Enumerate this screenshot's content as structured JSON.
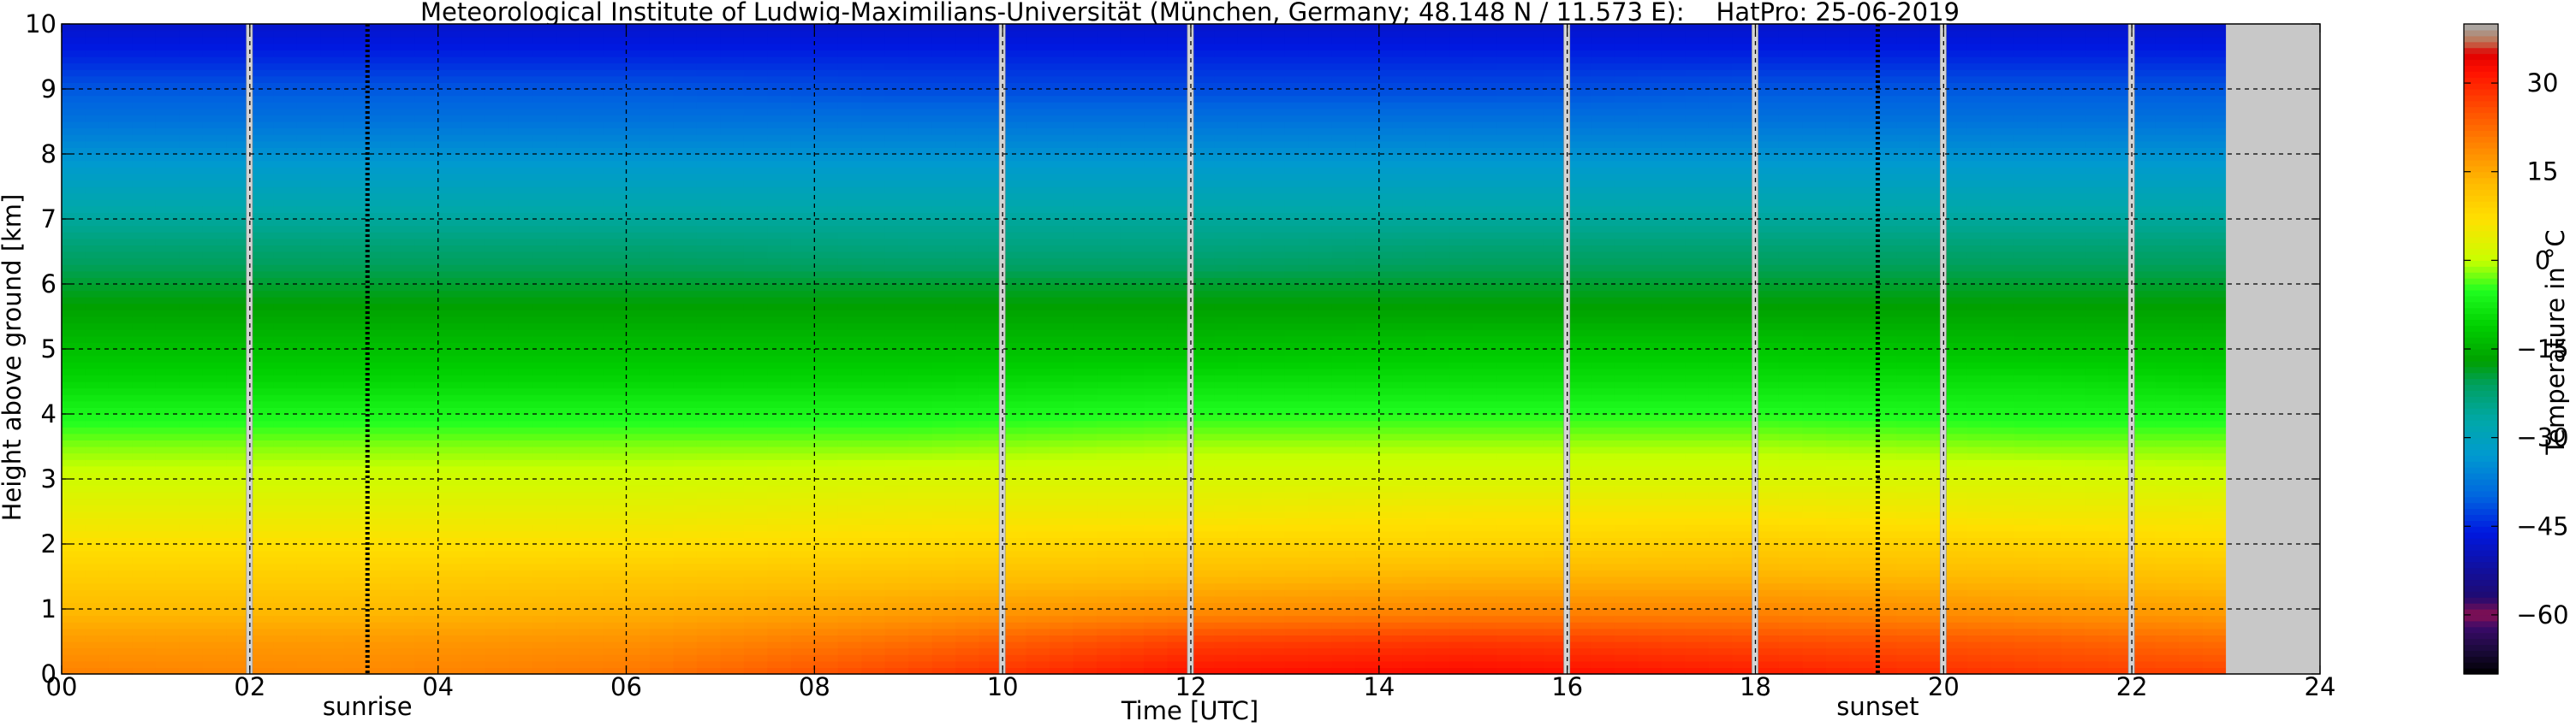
{
  "chart_data": {
    "type": "heatmap",
    "title": "Meteorological Institute of Ludwig-Maximilians-Universität (München, Germany; 48.148 N / 11.573 E):    HatPro: 25-06-2019",
    "xlabel": "Time [UTC]",
    "ylabel": "Height above ground [km]",
    "xlim": [
      0,
      24
    ],
    "ylim": [
      0,
      10
    ],
    "x_tick_labels": [
      "00",
      "02",
      "04",
      "06",
      "08",
      "10",
      "12",
      "14",
      "16",
      "18",
      "20",
      "22",
      "24"
    ],
    "y_tick_labels": [
      "0",
      "1",
      "2",
      "3",
      "4",
      "5",
      "6",
      "7",
      "8",
      "9",
      "10"
    ],
    "grid": true,
    "annotations": [
      {
        "text": "sunrise",
        "x": 3.25
      },
      {
        "text": "sunset",
        "x": 19.3
      }
    ],
    "marker_lines": [
      3.25,
      19.3
    ],
    "data_gaps_utc": [
      2.0,
      10.0,
      12.0,
      16.0,
      18.0,
      20.0,
      22.0
    ],
    "no_data_after_utc": 23.0,
    "colorbar": {
      "label": "Temperature in °C",
      "tick_labels": [
        "30",
        "15",
        "0",
        "−15",
        "−30",
        "−45",
        "−60"
      ],
      "ticks": [
        30,
        15,
        0,
        -15,
        -30,
        -45,
        -60
      ],
      "range": [
        -70,
        40
      ]
    },
    "heights_km": [
      0,
      0.5,
      1.0,
      1.5,
      2.0,
      2.5,
      3.0,
      3.5,
      4.0,
      4.5,
      5.0,
      5.5,
      6.0,
      6.5,
      7.0,
      7.5,
      8.0,
      8.5,
      9.0,
      9.5,
      10.0
    ],
    "series": [
      {
        "time_utc": 0,
        "temperature_c": [
          20,
          17,
          13,
          10,
          7,
          4,
          1,
          -2,
          -6,
          -10,
          -13,
          -16,
          -19,
          -22,
          -26,
          -30,
          -34,
          -38,
          -41,
          -45,
          -48
        ]
      },
      {
        "time_utc": 3,
        "temperature_c": [
          19,
          17,
          13,
          10,
          7,
          4,
          1,
          -2,
          -6,
          -10,
          -13,
          -16,
          -19,
          -22,
          -26,
          -30,
          -34,
          -38,
          -41,
          -45,
          -48
        ]
      },
      {
        "time_utc": 6,
        "temperature_c": [
          21,
          18,
          14,
          11,
          7,
          4,
          1,
          -2,
          -6,
          -10,
          -13,
          -16,
          -19,
          -22,
          -26,
          -30,
          -34,
          -38,
          -41,
          -45,
          -48
        ]
      },
      {
        "time_utc": 9,
        "temperature_c": [
          27,
          22,
          16,
          12,
          8,
          5,
          2,
          -2,
          -6,
          -10,
          -13,
          -16,
          -19,
          -23,
          -26,
          -30,
          -34,
          -38,
          -42,
          -45,
          -48
        ]
      },
      {
        "time_utc": 12,
        "temperature_c": [
          32,
          27,
          18,
          13,
          9,
          5,
          2,
          -1,
          -5,
          -9,
          -13,
          -16,
          -19,
          -23,
          -26,
          -30,
          -34,
          -38,
          -42,
          -45,
          -48
        ]
      },
      {
        "time_utc": 15,
        "temperature_c": [
          33,
          28,
          19,
          14,
          9,
          6,
          2,
          -1,
          -5,
          -9,
          -12,
          -16,
          -19,
          -22,
          -26,
          -30,
          -34,
          -38,
          -42,
          -45,
          -48
        ]
      },
      {
        "time_utc": 18,
        "temperature_c": [
          31,
          26,
          19,
          14,
          10,
          6,
          2,
          -1,
          -5,
          -9,
          -12,
          -16,
          -19,
          -22,
          -26,
          -30,
          -34,
          -38,
          -41,
          -45,
          -48
        ]
      },
      {
        "time_utc": 21,
        "temperature_c": [
          28,
          24,
          17,
          13,
          9,
          5,
          2,
          -2,
          -6,
          -9,
          -13,
          -16,
          -19,
          -22,
          -26,
          -30,
          -34,
          -38,
          -41,
          -45,
          -48
        ]
      },
      {
        "time_utc": 23,
        "temperature_c": [
          27,
          22,
          16,
          12,
          8,
          5,
          1,
          -2,
          -6,
          -10,
          -13,
          -16,
          -19,
          -22,
          -26,
          -30,
          -34,
          -38,
          -41,
          -45,
          -48
        ]
      }
    ]
  }
}
